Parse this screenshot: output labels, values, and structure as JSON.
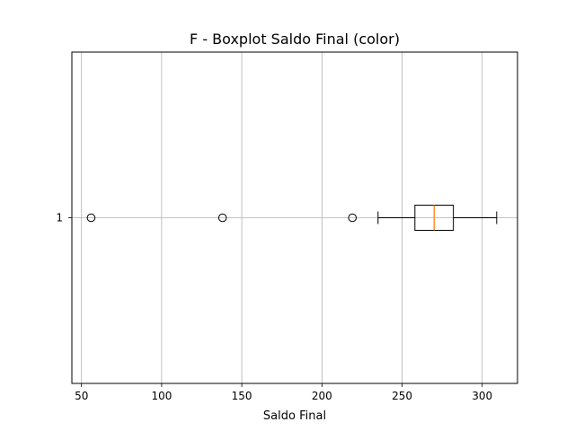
{
  "chart_data": {
    "type": "boxplot",
    "orientation": "horizontal",
    "title": "F - Boxplot Saldo Final (color)",
    "xlabel": "Saldo Final",
    "ylabel": "",
    "xlim": [
      44,
      322
    ],
    "xticks": [
      50,
      100,
      150,
      200,
      250,
      300
    ],
    "yticks": [
      "1"
    ],
    "grid": true,
    "boxes": [
      {
        "label": "1",
        "whisker_low": 235,
        "q1": 258,
        "median": 270,
        "q3": 282,
        "whisker_high": 309,
        "outliers": [
          56,
          138,
          219
        ]
      }
    ],
    "colors": {
      "median": "#ff7f0e",
      "box": "#000000",
      "grid": "#b0b0b0"
    }
  }
}
